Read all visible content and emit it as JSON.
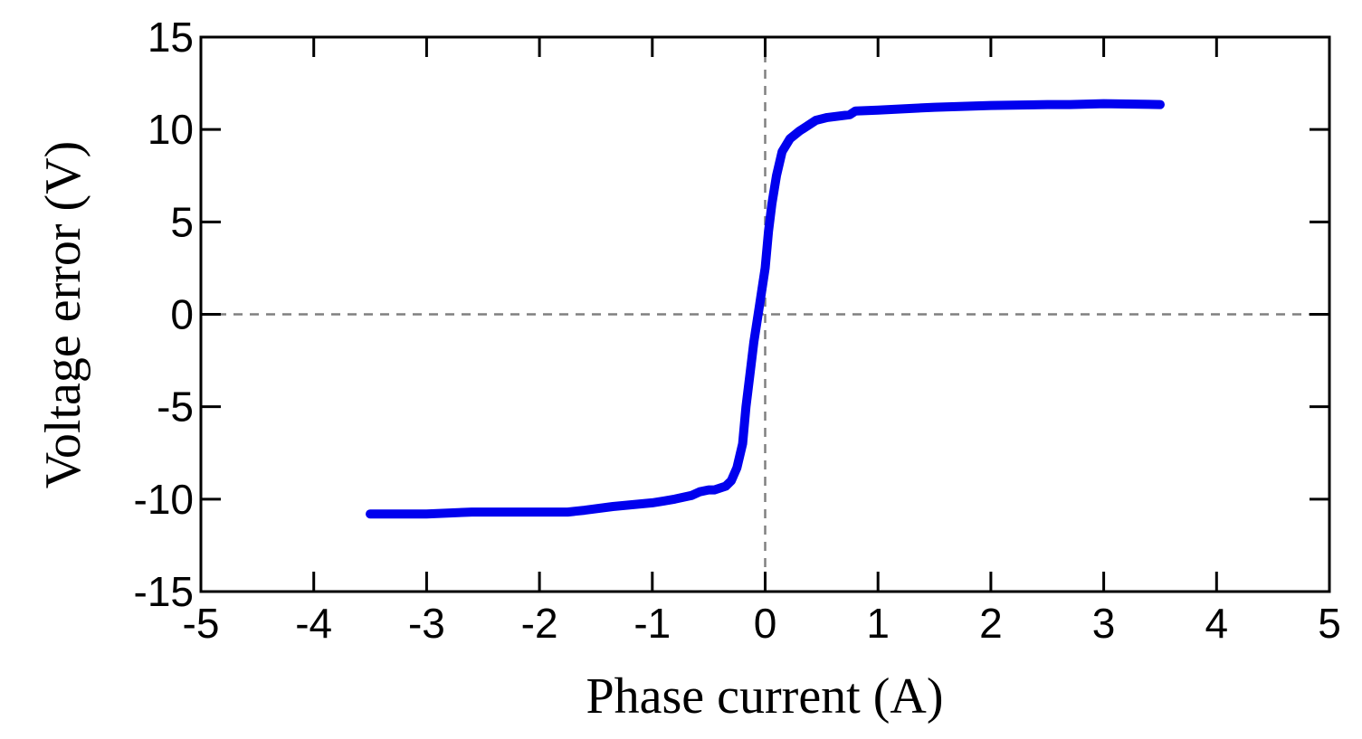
{
  "chart_data": {
    "type": "line",
    "xlabel": "Phase current (A)",
    "ylabel": "Voltage error (V)",
    "xlim": [
      -5,
      5
    ],
    "ylim": [
      -15,
      15
    ],
    "xticks": [
      -5,
      -4,
      -3,
      -2,
      -1,
      0,
      1,
      2,
      3,
      4,
      5
    ],
    "yticks": [
      -15,
      -10,
      -5,
      0,
      5,
      10,
      15
    ],
    "xtick_labels": [
      "-5",
      "-4",
      "-3",
      "-2",
      "-1",
      "0",
      "1",
      "2",
      "3",
      "4",
      "5"
    ],
    "ytick_labels": [
      "-15",
      "-10",
      "-5",
      "0",
      "5",
      "10",
      "15"
    ],
    "grid": false,
    "zero_reference_lines": true,
    "colors": {
      "series": "#0000ee",
      "reference_line": "#808080",
      "axes": "#000000"
    },
    "series": [
      {
        "x": [
          -3.5,
          -3.0,
          -2.6,
          -2.2,
          -1.75,
          -1.6,
          -1.35,
          -1.0,
          -0.9,
          -0.8,
          -0.65,
          -0.58,
          -0.5,
          -0.45,
          -0.35,
          -0.3,
          -0.25,
          -0.2,
          -0.17,
          -0.13,
          -0.1,
          -0.05,
          0.0,
          0.03,
          0.06,
          0.1,
          0.15,
          0.22,
          0.3,
          0.45,
          0.55,
          0.75,
          0.8,
          1.0,
          1.5,
          2.0,
          2.5,
          2.7,
          3.0,
          3.5
        ],
        "y": [
          -10.8,
          -10.8,
          -10.7,
          -10.7,
          -10.7,
          -10.6,
          -10.4,
          -10.2,
          -10.1,
          -10.0,
          -9.8,
          -9.6,
          -9.5,
          -9.5,
          -9.3,
          -9.0,
          -8.3,
          -7.0,
          -5.0,
          -3.0,
          -1.5,
          0.5,
          2.5,
          4.5,
          6.0,
          7.5,
          8.8,
          9.5,
          9.9,
          10.5,
          10.65,
          10.8,
          11.0,
          11.05,
          11.2,
          11.3,
          11.35,
          11.35,
          11.4,
          11.35
        ]
      }
    ]
  }
}
